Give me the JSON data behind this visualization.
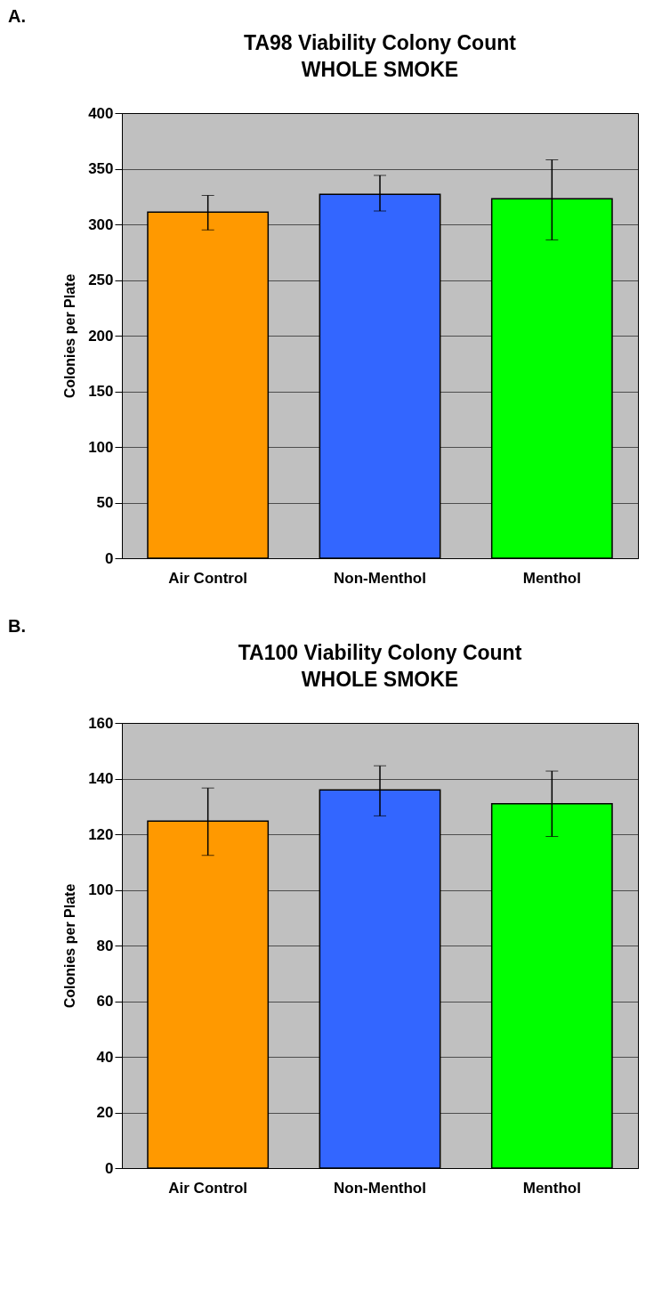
{
  "chart_data": [
    {
      "type": "bar",
      "title": "TA98 Viability Colony Count",
      "subtitle": "WHOLE SMOKE",
      "ylabel": "Colonies per Plate",
      "annotations": [
        "A."
      ],
      "categories": [
        "Air Control",
        "Non-Menthol",
        "Menthol"
      ],
      "values": [
        311,
        327,
        323
      ],
      "colors": [
        "#ff9900",
        "#3366ff",
        "#00ff00"
      ],
      "errors": [
        [
          295,
          326
        ],
        [
          312,
          344
        ],
        [
          286,
          358
        ]
      ],
      "ylim": [
        0,
        400
      ],
      "yticks": [
        0,
        50,
        100,
        150,
        200,
        250,
        300,
        350,
        400
      ],
      "grid": "y"
    },
    {
      "type": "bar",
      "title": "TA100 Viability Colony Count",
      "subtitle": "WHOLE SMOKE",
      "ylabel": "Colonies per Plate",
      "annotations": [
        "B."
      ],
      "categories": [
        "Air Control",
        "Non-Menthol",
        "Menthol"
      ],
      "values": [
        124.7,
        135.9,
        131
      ],
      "colors": [
        "#ff9900",
        "#3366ff",
        "#00ff00"
      ],
      "errors": [
        [
          112.4,
          136.6
        ],
        [
          126.6,
          144.6
        ],
        [
          119.2,
          142.7
        ]
      ],
      "ylim": [
        0,
        160
      ],
      "yticks": [
        0,
        20,
        40,
        60,
        80,
        100,
        120,
        140,
        160
      ],
      "grid": "y"
    }
  ]
}
